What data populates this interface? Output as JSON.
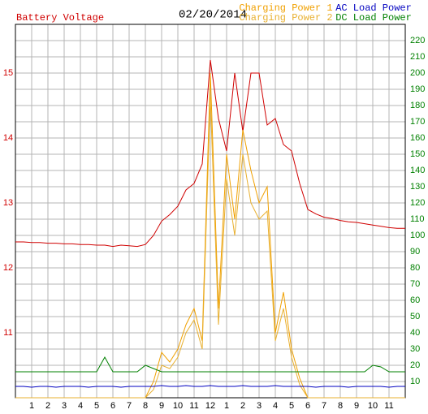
{
  "chart_data": {
    "type": "line",
    "title": "02/20/2014",
    "x": [
      0,
      0.5,
      1,
      1.5,
      2,
      2.5,
      3,
      3.5,
      4,
      4.5,
      5,
      5.5,
      6,
      6.5,
      7,
      7.5,
      8,
      8.5,
      9,
      9.5,
      10,
      10.5,
      11,
      11.5,
      12,
      12.5,
      13,
      13.5,
      14,
      14.5,
      15,
      15.5,
      16,
      16.5,
      17,
      17.5,
      18,
      18.5,
      19,
      19.5,
      20,
      20.5,
      21,
      21.5,
      22,
      22.5,
      23,
      23.5,
      24
    ],
    "xlim": [
      0,
      24
    ],
    "xticks": [
      1,
      2,
      3,
      4,
      5,
      6,
      7,
      8,
      9,
      10,
      11,
      12,
      {
        "value": 13,
        "label": "1"
      },
      {
        "value": 14,
        "label": "2"
      },
      {
        "value": 15,
        "label": "3"
      },
      {
        "value": 16,
        "label": "4"
      },
      {
        "value": 17,
        "label": "5"
      },
      {
        "value": 18,
        "label": "6"
      },
      {
        "value": 19,
        "label": "7"
      },
      {
        "value": 20,
        "label": "8"
      },
      {
        "value": 21,
        "label": "9"
      },
      {
        "value": 22,
        "label": "10"
      },
      {
        "value": 23,
        "label": "11"
      }
    ],
    "ylim": [
      10,
      15.75
    ],
    "yticks": [
      11,
      12,
      13,
      14,
      15
    ],
    "y2lim": [
      0,
      230
    ],
    "y2ticks": [
      10,
      20,
      30,
      40,
      50,
      60,
      70,
      80,
      90,
      100,
      110,
      120,
      130,
      140,
      150,
      160,
      170,
      180,
      190,
      200,
      210,
      220
    ],
    "grid": true,
    "series": [
      {
        "name": "Battery Voltage",
        "color": "#d00000",
        "axis": "y",
        "values": [
          12.4,
          12.4,
          12.39,
          12.39,
          12.38,
          12.38,
          12.37,
          12.37,
          12.36,
          12.36,
          12.35,
          12.35,
          12.33,
          12.35,
          12.34,
          12.33,
          12.36,
          12.5,
          12.72,
          12.82,
          12.95,
          13.2,
          13.3,
          13.6,
          15.2,
          14.3,
          13.8,
          15.0,
          14.1,
          15.0,
          15.0,
          14.2,
          14.3,
          13.9,
          13.8,
          13.3,
          12.9,
          12.83,
          12.78,
          12.76,
          12.73,
          12.71,
          12.7,
          12.68,
          12.66,
          12.64,
          12.62,
          12.61,
          12.61
        ]
      },
      {
        "name": "Charging Power 1",
        "color": "#f0a000",
        "axis": "y2",
        "values": [
          0,
          0,
          0,
          0,
          0,
          0,
          0,
          0,
          0,
          0,
          0,
          0,
          0,
          0,
          0,
          0,
          0,
          10,
          28,
          22,
          30,
          45,
          55,
          35,
          200,
          55,
          150,
          110,
          165,
          140,
          120,
          130,
          40,
          65,
          30,
          12,
          0,
          0,
          0,
          0,
          0,
          0,
          0,
          0,
          0,
          0,
          0,
          0,
          0
        ]
      },
      {
        "name": "Charging Power 2",
        "color": "#e8b030",
        "axis": "y2",
        "values": [
          0,
          0,
          0,
          0,
          0,
          0,
          0,
          0,
          0,
          0,
          0,
          0,
          0,
          0,
          0,
          0,
          0,
          5,
          20,
          18,
          25,
          40,
          48,
          30,
          185,
          45,
          135,
          100,
          150,
          120,
          110,
          115,
          35,
          55,
          25,
          8,
          0,
          0,
          0,
          0,
          0,
          0,
          0,
          0,
          0,
          0,
          0,
          0,
          0
        ]
      },
      {
        "name": "AC Load Power",
        "color": "#0000c0",
        "axis": "y2",
        "values": [
          7,
          7,
          6.5,
          7,
          7,
          6.5,
          7,
          7,
          7,
          6.5,
          7,
          7,
          7,
          6.5,
          7,
          7,
          7,
          7,
          7.5,
          7,
          7,
          7.5,
          7,
          7,
          7.5,
          7,
          7,
          7,
          7.5,
          7,
          7,
          7,
          7.5,
          7,
          7,
          7,
          7,
          6.5,
          7,
          7,
          7,
          6.5,
          7,
          7,
          7,
          7,
          6.5,
          7,
          7
        ]
      },
      {
        "name": "DC Load Power",
        "color": "#008000",
        "axis": "y2",
        "values": [
          16,
          16,
          16,
          16,
          16,
          16,
          16,
          16,
          16,
          16,
          16,
          25,
          16,
          16,
          16,
          16,
          20,
          18,
          16,
          16,
          16,
          16,
          16,
          16,
          16,
          16,
          16,
          16,
          16,
          16,
          16,
          16,
          16,
          16,
          16,
          16,
          16,
          16,
          16,
          16,
          16,
          16,
          16,
          16,
          20,
          19,
          16,
          16,
          16
        ]
      }
    ]
  }
}
